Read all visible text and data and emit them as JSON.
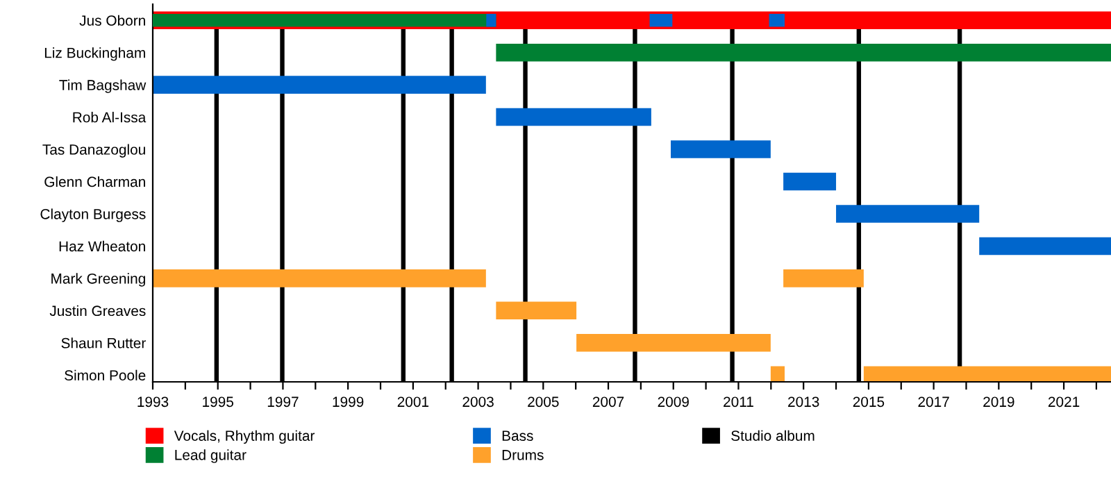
{
  "chart_data": {
    "type": "bar",
    "orientation": "horizontal",
    "categories": [
      "Jus Oborn",
      "Liz Buckingham",
      "Tim Bagshaw",
      "Rob Al-Issa",
      "Tas Danazoglou",
      "Glenn Charman",
      "Clayton Burgess",
      "Haz Wheaton",
      "Mark Greening",
      "Justin Greaves",
      "Shaun Rutter",
      "Simon Poole"
    ],
    "series": [
      {
        "name": "Vocals, Rhythm guitar",
        "color": "#ff0000",
        "base": [
          1993,
          null,
          null,
          null,
          null,
          null,
          null,
          null,
          null,
          null,
          null,
          null
        ],
        "values": [
          29.45,
          null,
          null,
          null,
          null,
          null,
          null,
          null,
          null,
          null,
          null,
          null
        ]
      },
      {
        "name": "Lead guitar",
        "color": "#008033",
        "base": [
          1993,
          2003.55,
          null,
          null,
          null,
          null,
          null,
          null,
          null,
          null,
          null,
          null
        ],
        "values": [
          10.55,
          18.9,
          null,
          null,
          null,
          null,
          null,
          null,
          null,
          null,
          null,
          null
        ]
      },
      {
        "name": "Bass",
        "color": "#0066cc",
        "base": [
          2003.25,
          null,
          1993,
          2003.55,
          2008.92,
          2012.38,
          2014.0,
          2018.4,
          null,
          null,
          null,
          null
        ],
        "values": [
          0.3,
          null,
          10.24,
          4.77,
          3.07,
          1.62,
          4.4,
          4.05,
          null,
          null,
          null,
          null
        ]
      },
      {
        "color": "#0066cc",
        "base": [
          2008.27,
          null,
          null,
          null,
          null,
          null,
          null,
          null,
          null,
          null,
          null,
          null
        ],
        "values": [
          0.7,
          null,
          null,
          null,
          null,
          null,
          null,
          null,
          null,
          null,
          null,
          null
        ]
      },
      {
        "color": "#0066cc",
        "base": [
          2011.94,
          null,
          null,
          null,
          null,
          null,
          null,
          null,
          null,
          null,
          null,
          null
        ],
        "values": [
          0.48,
          null,
          null,
          null,
          null,
          null,
          null,
          null,
          null,
          null,
          null,
          null
        ]
      },
      {
        "name": "Drums",
        "color": "#ffa12b",
        "base": [
          null,
          null,
          null,
          null,
          null,
          null,
          null,
          null,
          1993,
          2003.55,
          2006.02,
          2011.99
        ],
        "values": [
          null,
          null,
          null,
          null,
          null,
          null,
          null,
          null,
          10.24,
          2.47,
          5.97,
          0.43
        ]
      },
      {
        "color": "#ffa12b",
        "base": [
          null,
          null,
          null,
          null,
          null,
          null,
          null,
          null,
          2012.38,
          null,
          null,
          2014.85
        ],
        "values": [
          null,
          null,
          null,
          null,
          null,
          null,
          null,
          null,
          2.47,
          null,
          null,
          7.6
        ]
      }
    ],
    "xlim": [
      1993,
      2022.45
    ],
    "xticks": [
      1993,
      {
        "value": 1994,
        "label": null
      },
      1995,
      {
        "value": 1996,
        "label": null
      },
      1997,
      {
        "value": 1998,
        "label": null
      },
      1999,
      {
        "value": 2000,
        "label": null
      },
      2001,
      {
        "value": 2002,
        "label": null
      },
      2003,
      {
        "value": 2004,
        "label": null
      },
      2005,
      {
        "value": 2006,
        "label": null
      },
      2007,
      {
        "value": 2008,
        "label": null
      },
      2009,
      {
        "value": 2010,
        "label": null
      },
      2011,
      {
        "value": 2012,
        "label": null
      },
      2013,
      {
        "value": 2014,
        "label": null
      },
      2015,
      {
        "value": 2016,
        "label": null
      },
      2017,
      {
        "value": 2018,
        "label": null
      },
      2019,
      {
        "value": 2020,
        "label": null
      },
      2021,
      {
        "value": 2022,
        "label": null
      }
    ],
    "ref_lines": [
      {
        "axis": "x",
        "value": 1994.96,
        "label": "Studio album",
        "color": "#000000"
      },
      {
        "axis": "x",
        "value": 1996.98,
        "color": "#000000"
      },
      {
        "axis": "x",
        "value": 2000.7,
        "color": "#000000"
      },
      {
        "axis": "x",
        "value": 2002.19,
        "color": "#000000"
      },
      {
        "axis": "x",
        "value": 2004.45,
        "color": "#000000"
      },
      {
        "axis": "x",
        "value": 2007.82,
        "color": "#000000"
      },
      {
        "axis": "x",
        "value": 2010.81,
        "color": "#000000"
      },
      {
        "axis": "x",
        "value": 2014.7,
        "color": "#000000"
      },
      {
        "axis": "x",
        "value": 2017.8,
        "color": "#000000"
      }
    ],
    "legend": "bottom",
    "grid": false
  }
}
